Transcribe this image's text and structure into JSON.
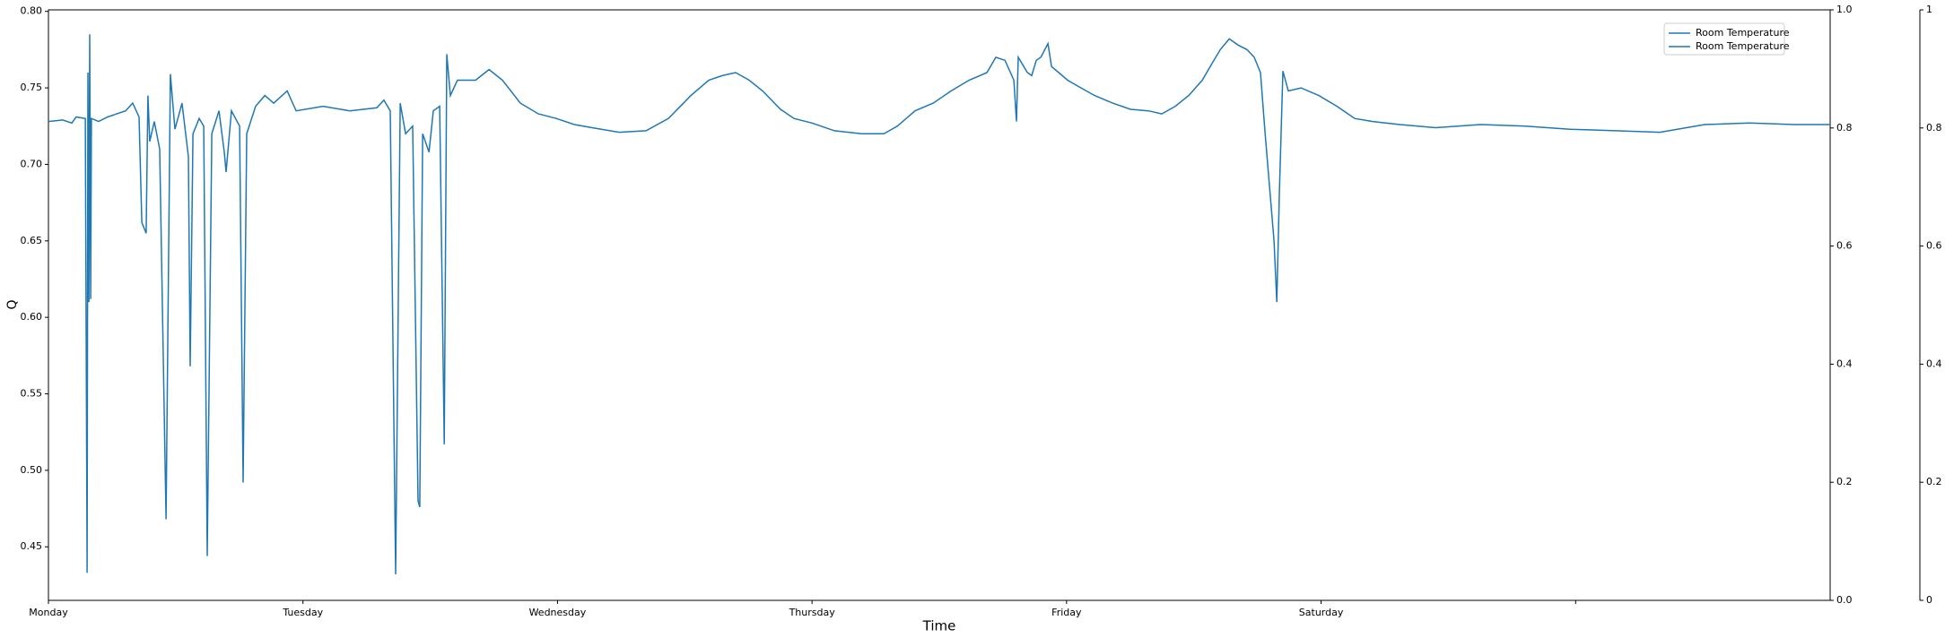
{
  "chart_data": {
    "type": "line",
    "xlabel": "Time",
    "ylabel": "Q",
    "xlim": [
      0,
      7
    ],
    "xticks": [
      {
        "value": 0,
        "label": "Monday"
      },
      {
        "value": 1,
        "label": "Tuesday"
      },
      {
        "value": 2,
        "label": "Wednesday"
      },
      {
        "value": 3,
        "label": "Thursday"
      },
      {
        "value": 4,
        "label": "Friday"
      },
      {
        "value": 5,
        "label": "Saturday"
      },
      {
        "value": 6,
        "label": null
      }
    ],
    "ylim": [
      0.415,
      0.801
    ],
    "yticks": [
      0.45,
      {
        "value": 0.5,
        "label": "0.50"
      },
      0.55,
      {
        "value": 0.6,
        "label": "0.60"
      },
      0.65,
      {
        "value": 0.7,
        "label": "0.70"
      },
      0.75,
      {
        "value": 0.8,
        "label": "0.80"
      }
    ],
    "y2lim": [
      0,
      1
    ],
    "y2ticks": [
      {
        "value": 0,
        "label": "0.0"
      },
      0.2,
      0.4,
      0.6,
      0.8,
      {
        "value": 1,
        "label": "1.0"
      }
    ],
    "y3lim": [
      0,
      1
    ],
    "y3ticks": [
      0,
      0.2,
      0.4,
      0.6,
      0.8,
      1
    ],
    "legend": "upper right",
    "series": [
      {
        "name": "Room Temperature",
        "color": "#1f77b4",
        "x": [
          0,
          0.056,
          0.092,
          0.109,
          0.145,
          0.152,
          0.155,
          0.159,
          0.162,
          0.166,
          0.169,
          0.197,
          0.233,
          0.268,
          0.303,
          0.331,
          0.356,
          0.367,
          0.384,
          0.391,
          0.398,
          0.416,
          0.437,
          0.462,
          0.479,
          0.497,
          0.525,
          0.55,
          0.557,
          0.568,
          0.592,
          0.61,
          0.624,
          0.642,
          0.67,
          0.691,
          0.698,
          0.719,
          0.751,
          0.765,
          0.779,
          0.814,
          0.85,
          0.885,
          0.938,
          0.973,
          1.079,
          1.184,
          1.29,
          1.318,
          1.343,
          1.364,
          1.382,
          1.403,
          1.431,
          1.452,
          1.459,
          1.47,
          1.495,
          1.512,
          1.537,
          1.555,
          1.565,
          1.579,
          1.607,
          1.678,
          1.731,
          1.784,
          1.854,
          1.925,
          1.995,
          2.066,
          2.136,
          2.242,
          2.348,
          2.436,
          2.524,
          2.594,
          2.647,
          2.7,
          2.753,
          2.806,
          2.876,
          2.929,
          3.0,
          3.088,
          3.194,
          3.282,
          3.335,
          3.405,
          3.476,
          3.546,
          3.617,
          3.687,
          3.722,
          3.758,
          3.793,
          3.803,
          3.81,
          3.846,
          3.863,
          3.881,
          3.899,
          3.927,
          3.941,
          3.969,
          4.004,
          4.057,
          4.11,
          4.181,
          4.251,
          4.322,
          4.374,
          4.427,
          4.48,
          4.533,
          4.568,
          4.604,
          4.639,
          4.674,
          4.709,
          4.737,
          4.762,
          4.78,
          4.815,
          4.826,
          4.836,
          4.85,
          4.871,
          4.921,
          4.991,
          5.062,
          5.132,
          5.203,
          5.309,
          5.45,
          5.626,
          5.802,
          5.978,
          6.154,
          6.331,
          6.507,
          6.683,
          6.859,
          7.0
        ],
        "values": [
          0.728,
          0.729,
          0.727,
          0.731,
          0.73,
          0.433,
          0.76,
          0.61,
          0.785,
          0.612,
          0.73,
          0.728,
          0.731,
          0.733,
          0.735,
          0.74,
          0.731,
          0.662,
          0.655,
          0.745,
          0.715,
          0.728,
          0.71,
          0.468,
          0.759,
          0.723,
          0.74,
          0.705,
          0.568,
          0.72,
          0.73,
          0.725,
          0.444,
          0.72,
          0.735,
          0.708,
          0.695,
          0.735,
          0.725,
          0.492,
          0.72,
          0.738,
          0.745,
          0.74,
          0.748,
          0.735,
          0.738,
          0.735,
          0.737,
          0.742,
          0.735,
          0.432,
          0.74,
          0.72,
          0.725,
          0.48,
          0.476,
          0.72,
          0.708,
          0.735,
          0.738,
          0.517,
          0.772,
          0.745,
          0.755,
          0.755,
          0.762,
          0.755,
          0.74,
          0.733,
          0.73,
          0.726,
          0.724,
          0.721,
          0.722,
          0.73,
          0.745,
          0.755,
          0.758,
          0.76,
          0.755,
          0.748,
          0.736,
          0.73,
          0.727,
          0.722,
          0.72,
          0.72,
          0.725,
          0.735,
          0.74,
          0.748,
          0.755,
          0.76,
          0.77,
          0.768,
          0.755,
          0.728,
          0.77,
          0.76,
          0.758,
          0.768,
          0.77,
          0.779,
          0.764,
          0.76,
          0.755,
          0.75,
          0.745,
          0.74,
          0.736,
          0.735,
          0.733,
          0.738,
          0.745,
          0.755,
          0.765,
          0.775,
          0.782,
          0.778,
          0.775,
          0.77,
          0.76,
          0.72,
          0.65,
          0.61,
          0.68,
          0.761,
          0.748,
          0.75,
          0.745,
          0.738,
          0.73,
          0.728,
          0.726,
          0.724,
          0.726,
          0.725,
          0.723,
          0.722,
          0.721,
          0.726,
          0.727,
          0.726,
          0.726
        ]
      },
      {
        "name": "Room Temperature",
        "color": "#1f77b4",
        "axis": "y2",
        "x": [],
        "values": []
      }
    ]
  }
}
